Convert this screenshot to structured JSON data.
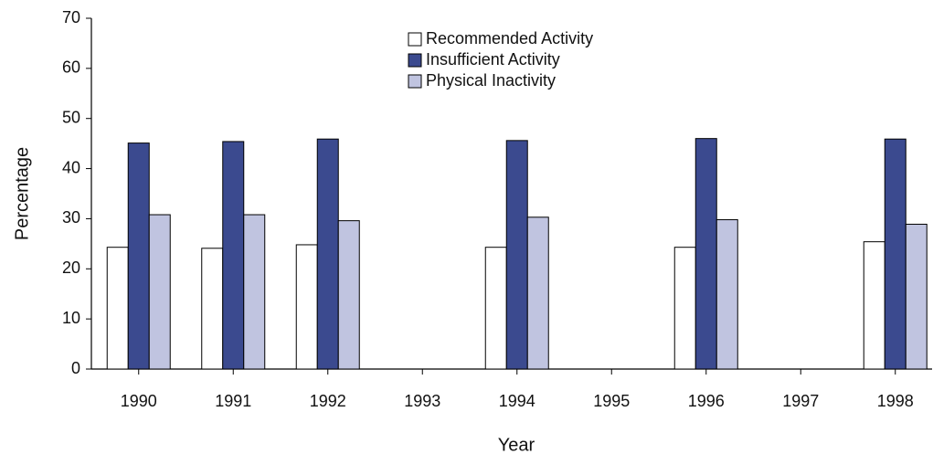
{
  "chart_data": {
    "type": "bar",
    "x_label": "Year",
    "y_label": "Percentage",
    "categories": [
      "1990",
      "1991",
      "1992",
      "1993",
      "1994",
      "1995",
      "1996",
      "1997",
      "1998"
    ],
    "series": [
      {
        "name": "Recommended Activity",
        "color": "#ffffff",
        "values": [
          24.3,
          24.1,
          24.8,
          null,
          24.3,
          null,
          24.3,
          null,
          25.4
        ]
      },
      {
        "name": "Insufficient Activity",
        "color": "#3b4a8f",
        "values": [
          45.1,
          45.4,
          45.9,
          null,
          45.6,
          null,
          46.0,
          null,
          45.9
        ]
      },
      {
        "name": "Physical Inactivity",
        "color": "#c0c4e0",
        "values": [
          30.8,
          30.8,
          29.6,
          null,
          30.3,
          null,
          29.8,
          null,
          28.9
        ]
      }
    ],
    "ylim": [
      0,
      70
    ],
    "yticks": [
      0,
      10,
      20,
      30,
      40,
      50,
      60,
      70
    ],
    "grid": false,
    "legend": "top"
  }
}
